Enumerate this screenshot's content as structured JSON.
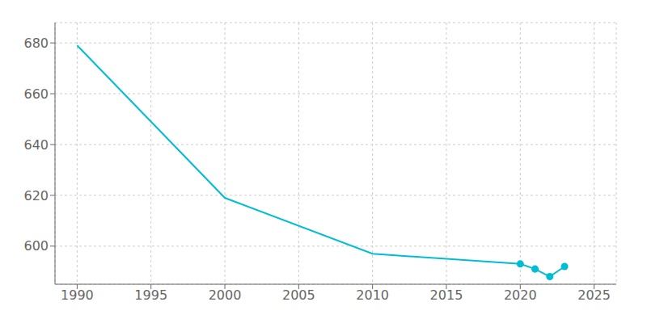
{
  "chart_data": {
    "type": "line",
    "series": [
      {
        "type": "line",
        "color": "#00bcd4",
        "marker": "none",
        "x": [
          1990,
          2000,
          2010,
          2020,
          2021,
          2022,
          2023
        ],
        "values": [
          679,
          619,
          597,
          593,
          591,
          588,
          592
        ]
      },
      {
        "type": "scatter",
        "color": "#00bcd4",
        "marker": "circle",
        "x": [
          2020,
          2021,
          2022,
          2023
        ],
        "values": [
          593,
          591,
          588,
          592
        ]
      }
    ],
    "xlim": [
      1988.5,
      2026.5
    ],
    "ylim": [
      585,
      688
    ],
    "xticks": [
      1990,
      1995,
      2000,
      2005,
      2010,
      2015,
      2020,
      2025
    ],
    "yticks": [
      600,
      620,
      640,
      660,
      680
    ],
    "grid": true
  }
}
